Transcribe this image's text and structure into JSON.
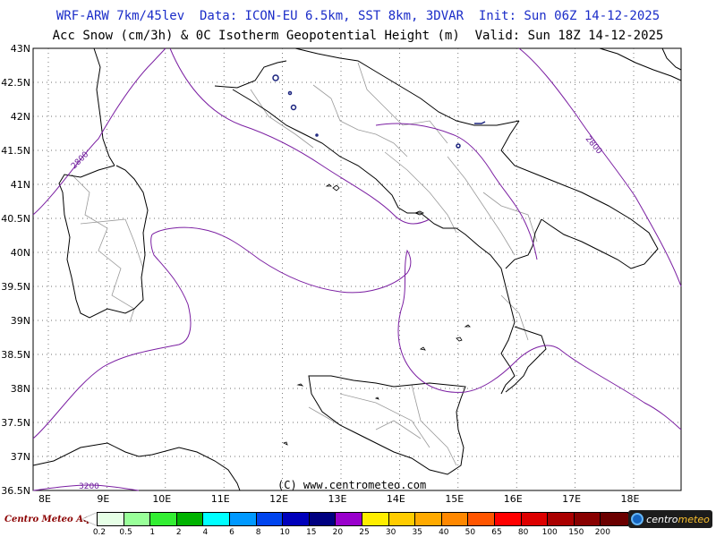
{
  "header": {
    "title_line1": "WRF-ARW 7km/45lev  Data: ICON-EU 6.5km, SST 8km, 3DVAR  Init: Sun 06Z 14-12-2025",
    "title_line2": "Acc Snow (cm/3h) & 0C Isotherm Geopotential Height (m)  Valid: Sun 18Z 14-12-2025"
  },
  "map": {
    "lat_labels": [
      "43N",
      "42.5N",
      "42N",
      "41.5N",
      "41N",
      "40.5N",
      "40N",
      "39.5N",
      "39N",
      "38.5N",
      "38N",
      "37.5N",
      "37N",
      "36.5N"
    ],
    "lon_labels": [
      "8E",
      "9E",
      "10E",
      "11E",
      "12E",
      "13E",
      "14E",
      "15E",
      "16E",
      "17E",
      "18E"
    ],
    "contour_labels": [
      "2800",
      "2800",
      "3200"
    ],
    "copyright": "(C) www.centrometeo.com",
    "land_border_color": "#000000",
    "region_border_color": "#999999",
    "isotherm_color": "#7b1fa2",
    "snow_marker_color": "#1a237e"
  },
  "legend": {
    "brand_left": "Centro Meteo Aquese",
    "brand_right_a": "centro",
    "brand_right_b": "meteo",
    "colors": [
      "#e6ffe6",
      "#99ff99",
      "#33ee33",
      "#00b300",
      "#00ffff",
      "#0099ff",
      "#0044ee",
      "#0000bb",
      "#000080",
      "#9900cc",
      "#ffee00",
      "#ffcc00",
      "#ffaa00",
      "#ff8800",
      "#ff5500",
      "#ff0000",
      "#dd0000",
      "#aa0000",
      "#880000",
      "#6b0000"
    ],
    "labels": [
      "0.2",
      "0.5",
      "1",
      "2",
      "4",
      "6",
      "8",
      "10",
      "15",
      "20",
      "25",
      "30",
      "35",
      "40",
      "50",
      "65",
      "80",
      "100",
      "150",
      "200"
    ]
  }
}
